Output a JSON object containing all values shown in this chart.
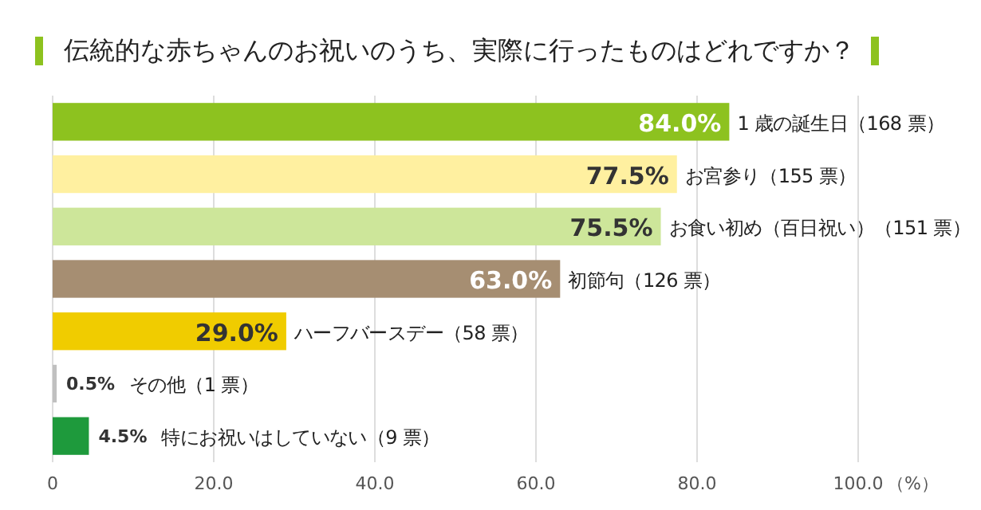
{
  "chart_data": {
    "type": "bar",
    "orientation": "horizontal",
    "title": "伝統的な赤ちゃんのお祝いのうち、実際に行ったものはどれですか？",
    "xlabel": "（%）",
    "categories": [
      "1 歳の誕生日（168 票）",
      "お宮参り（155 票）",
      "お食い初め（百日祝い）（151 票）",
      "初節句（126 票）",
      "ハーフバースデー（58 票）",
      "その他（1 票）",
      "特にお祝いはしていない（9 票）"
    ],
    "values": [
      84.0,
      77.5,
      75.5,
      63.0,
      29.0,
      0.5,
      4.5
    ],
    "colors": [
      "#8dc21f",
      "#fff0a0",
      "#cde69a",
      "#a68e72",
      "#f0cc00",
      "#c0c0c0",
      "#1e9a3c"
    ],
    "value_labels": [
      "84.0%",
      "77.5%",
      "75.5%",
      "63.0%",
      "29.0%",
      "0.5%",
      "4.5%"
    ],
    "xlim": [
      0,
      100
    ],
    "xticks": [
      0,
      {
        "value": 20,
        "label": "20.0"
      },
      {
        "value": 40,
        "label": "40.0"
      },
      {
        "value": 60,
        "label": "60.0"
      },
      {
        "value": 80,
        "label": "80.0"
      },
      {
        "value": 100,
        "label": "100.0"
      }
    ],
    "grid": "x"
  }
}
